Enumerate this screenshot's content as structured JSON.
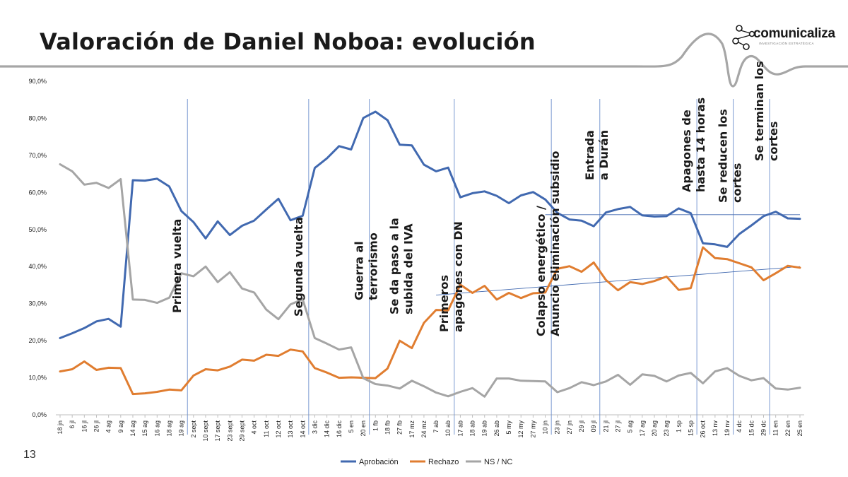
{
  "page": {
    "title": "Valoración de Daniel Noboa: evolución",
    "page_number": "13"
  },
  "logo": {
    "name": "comunicaliza",
    "subtitle": "INVESTIGACIÓN ESTRATÉGICA"
  },
  "colors": {
    "aprobacion": "#4169b0",
    "rechazo": "#e07d30",
    "nsnc": "#a5a5a5",
    "event_line": "#6d8fcc"
  },
  "chart_data": {
    "type": "line",
    "categories": [
      "18 jn",
      "6 jl",
      "16 jl",
      "26 jl",
      "4 ag",
      "9 ag",
      "14 ag",
      "15 ag",
      "16 ag",
      "18 ag",
      "19 ag",
      "2 sept",
      "10 sept",
      "17 sept",
      "23 sept",
      "29 sept",
      "4 oct",
      "11 oct",
      "12 oct",
      "13 oct",
      "14 oct",
      "3 dic",
      "14 dic",
      "16 dic",
      "5 en",
      "20 en",
      "1 fb",
      "18 fb",
      "27 fb",
      "17 mz",
      "24 mz",
      "7 ab",
      "10 ab",
      "17 ab",
      "18 ab",
      "19 ab",
      "26 ab",
      "5 my",
      "12 my",
      "27 my",
      "10 jn",
      "23 jn",
      "27 jn",
      "29 jl",
      "09 jl",
      "21 jl",
      "27 jl",
      "5 ag",
      "17 ag",
      "20 ag",
      "23 ag",
      "1 sp",
      "15 sp",
      "26 oct",
      "13 nv",
      "19 nv",
      "4 dc",
      "15 dc",
      "29 dc",
      "11 en",
      "22 en",
      "25 en"
    ],
    "series": [
      {
        "name": "Aprobación",
        "values": [
          20.7,
          22.0,
          23.4,
          25.2,
          25.9,
          23.8,
          63.3,
          63.2,
          63.7,
          61.6,
          55.0,
          52.0,
          47.6,
          52.2,
          48.5,
          51.0,
          52.4,
          55.4,
          58.3,
          52.5,
          53.7,
          66.6,
          69.2,
          72.5,
          71.6,
          80.1,
          81.8,
          79.5,
          72.9,
          72.7,
          67.5,
          65.7,
          66.7,
          58.7,
          59.8,
          60.3,
          59.1,
          57.1,
          59.2,
          60.1,
          58.1,
          54.5,
          52.7,
          52.4,
          50.9,
          54.6,
          55.5,
          56.1,
          53.8,
          53.5,
          53.6,
          55.7,
          54.4,
          46.3,
          46.0,
          45.3,
          48.8,
          51.1,
          53.6,
          54.8,
          53.0,
          52.9
        ]
      },
      {
        "name": "Rechazo",
        "values": [
          11.7,
          12.3,
          14.4,
          12.1,
          12.7,
          12.6,
          5.6,
          5.8,
          6.2,
          6.8,
          6.6,
          10.6,
          12.3,
          12.0,
          13.0,
          14.9,
          14.6,
          16.2,
          15.9,
          17.6,
          17.1,
          12.6,
          11.4,
          10.0,
          10.1,
          10.0,
          9.9,
          12.5,
          20.0,
          18.0,
          24.8,
          28.3,
          28.2,
          35.1,
          32.9,
          34.8,
          31.1,
          32.9,
          31.5,
          32.8,
          33.0,
          39.4,
          40.1,
          38.6,
          41.1,
          36.4,
          33.6,
          35.8,
          35.3,
          36.1,
          37.3,
          33.7,
          34.2,
          45.2,
          42.3,
          42.0,
          40.9,
          39.8,
          36.3,
          38.2,
          40.2,
          39.7
        ]
      },
      {
        "name": "NS / NC",
        "values": [
          67.6,
          65.7,
          62.1,
          62.6,
          61.2,
          63.6,
          31.1,
          31.0,
          30.2,
          31.6,
          38.2,
          37.4,
          40.0,
          35.8,
          38.5,
          34.1,
          33.0,
          28.4,
          25.8,
          29.8,
          31.2,
          20.7,
          19.2,
          17.6,
          18.2,
          9.9,
          8.3,
          7.9,
          7.1,
          9.2,
          7.7,
          6.0,
          5.0,
          6.2,
          7.2,
          4.9,
          9.8,
          9.8,
          9.2,
          9.1,
          9.0,
          6.1,
          7.2,
          8.8,
          8.0,
          9.0,
          10.8,
          8.1,
          10.9,
          10.5,
          9.0,
          10.6,
          11.3,
          8.5,
          11.7,
          12.6,
          10.5,
          9.3,
          9.9,
          7.1,
          6.8,
          7.3
        ]
      }
    ],
    "ylim": [
      0,
      90
    ],
    "yticks": [
      "0,0%",
      "10,0%",
      "20,0%",
      "30,0%",
      "40,0%",
      "50,0%",
      "60,0%",
      "70,0%",
      "80,0%",
      "90,0%"
    ],
    "legend": {
      "position": "bottom",
      "entries": [
        "Aprobación",
        "Rechazo",
        "NS / NC"
      ]
    },
    "reference_lines": [
      {
        "series": "Aprobación",
        "from": "10 jn",
        "to": "25 en",
        "value": 54.0
      },
      {
        "series": "Rechazo",
        "from": "7 ab",
        "to": "25 en",
        "value_start": 32.3,
        "value_end": 40.0
      }
    ],
    "events": [
      {
        "after": "19 ag",
        "lines": [
          "Primera vuelta"
        ]
      },
      {
        "after": "14 oct",
        "lines": [
          "Segunda vuelta"
        ]
      },
      {
        "after": "20 en",
        "lines": [
          "Guerra al",
          "terrorismo"
        ]
      },
      {
        "after": "20 en",
        "lines": [
          "Se da paso a la",
          "subida del IVA"
        ]
      },
      {
        "after": "10 ab",
        "lines": [
          "Primeros",
          "apagones con DN"
        ]
      },
      {
        "after": "10 jn",
        "lines": [
          "Colapso energético /",
          "Anuncio eliminación subsidio"
        ]
      },
      {
        "after": "09 jl",
        "lines": [
          "Entrada",
          "a Durán"
        ]
      },
      {
        "after": "15 sp",
        "lines": [
          "Apagones de",
          "hasta 14 horas"
        ]
      },
      {
        "after": "19 nv",
        "lines": [
          "Se reducen los",
          "cortes"
        ]
      },
      {
        "after": "29 dc",
        "lines": [
          "Se terminan los",
          "cortes"
        ]
      }
    ]
  }
}
